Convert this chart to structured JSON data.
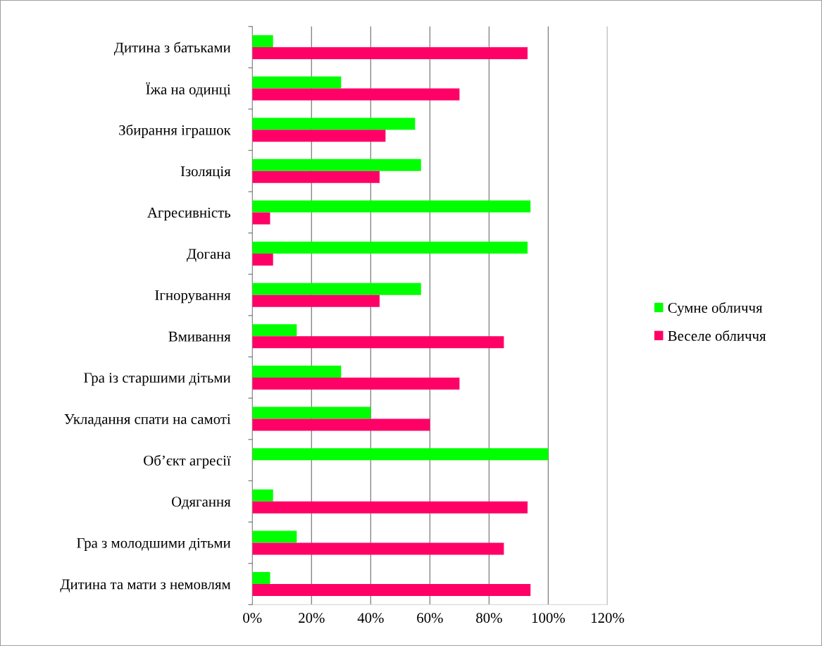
{
  "chart_data": {
    "type": "bar",
    "orientation": "horizontal",
    "categories": [
      "Дитина з батьками",
      "Їжа на одинці",
      "Збирання іграшок",
      "Ізоляція",
      "Агресивність",
      "Догана",
      "Ігнорування",
      "Вмивання",
      "Гра із старшими дітьми",
      "Укладання спати на самоті",
      "Об’єкт агресії",
      "Одягання",
      "Гра з молодшими дітьми",
      "Дитина та мати з немовлям"
    ],
    "series": [
      {
        "name": "Сумне обличчя",
        "color": "#00ff00",
        "values": [
          7,
          30,
          55,
          57,
          94,
          93,
          57,
          15,
          30,
          40,
          100,
          7,
          15,
          6
        ]
      },
      {
        "name": "Веселе обличчя",
        "color": "#ff0066",
        "values": [
          93,
          70,
          45,
          43,
          6,
          7,
          43,
          85,
          70,
          60,
          0,
          93,
          85,
          94
        ]
      }
    ],
    "xlim": [
      0,
      120
    ],
    "xticks": [
      {
        "value": 0,
        "label": "0%"
      },
      {
        "value": 20,
        "label": "20%"
      },
      {
        "value": 40,
        "label": "40%"
      },
      {
        "value": 60,
        "label": "60%"
      },
      {
        "value": 80,
        "label": "80%"
      },
      {
        "value": 100,
        "label": "100%"
      },
      {
        "value": 120,
        "label": "120%"
      }
    ],
    "grid": "x",
    "legend": "right"
  }
}
